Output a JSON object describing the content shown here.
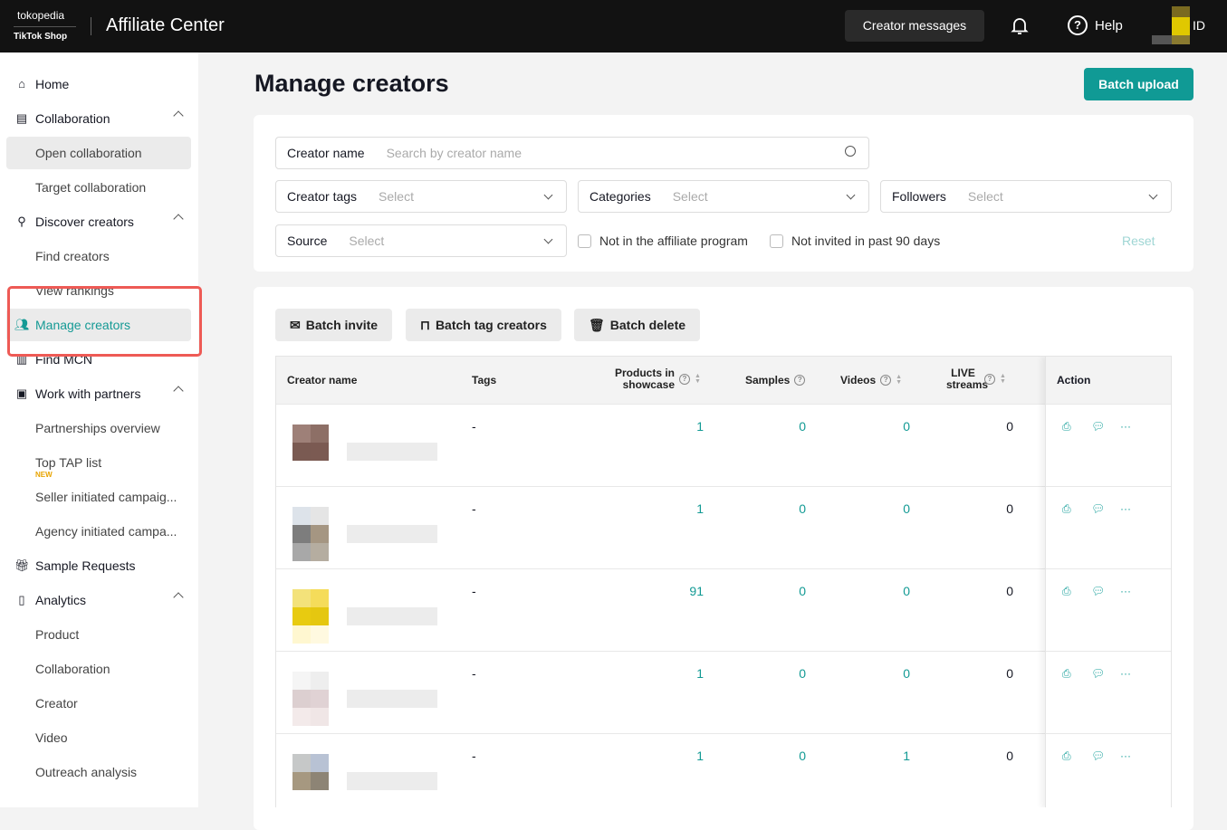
{
  "header": {
    "logo_top": "tokopedia",
    "logo_bottom": "TikTok Shop",
    "app_title": "Affiliate Center",
    "creator_messages": "Creator messages",
    "help": "Help",
    "region": "ID"
  },
  "sidebar": {
    "items": [
      {
        "label": "Home",
        "icon": "home-icon"
      },
      {
        "label": "Collaboration",
        "icon": "document-icon",
        "expanded": true
      },
      {
        "label": "Open collaboration",
        "sub": true
      },
      {
        "label": "Target collaboration",
        "sub": true
      },
      {
        "label": "Discover creators",
        "icon": "person-search-icon",
        "expanded": true
      },
      {
        "label": "Find creators",
        "sub": true
      },
      {
        "label": "View rankings",
        "sub": true
      },
      {
        "label": "Manage creators",
        "icon": "people-icon",
        "active": true
      },
      {
        "label": "Find MCN",
        "icon": "building-icon"
      },
      {
        "label": "Work with partners",
        "icon": "handshake-icon",
        "expanded": true
      },
      {
        "label": "Partnerships overview",
        "sub": true
      },
      {
        "label": "Top TAP list",
        "sub": true,
        "badge": "NEW"
      },
      {
        "label": "Seller initiated campaig...",
        "sub": true
      },
      {
        "label": "Agency initiated campa...",
        "sub": true
      },
      {
        "label": "Sample Requests",
        "icon": "gift-icon"
      },
      {
        "label": "Analytics",
        "icon": "chart-icon",
        "expanded": true
      },
      {
        "label": "Product",
        "sub": true
      },
      {
        "label": "Collaboration",
        "sub": true
      },
      {
        "label": "Creator",
        "sub": true
      },
      {
        "label": "Video",
        "sub": true
      },
      {
        "label": "Outreach analysis",
        "sub": true
      }
    ]
  },
  "page": {
    "title": "Manage creators",
    "batch_upload": "Batch upload"
  },
  "filters": {
    "creator_name_label": "Creator name",
    "creator_name_placeholder": "Search by creator name",
    "creator_name_value": "",
    "creator_tags_label": "Creator tags",
    "categories_label": "Categories",
    "followers_label": "Followers",
    "source_label": "Source",
    "select_placeholder": "Select",
    "not_in_program": "Not in the affiliate program",
    "not_invited": "Not invited in past 90 days",
    "reset": "Reset"
  },
  "toolbar": {
    "batch_invite": "Batch invite",
    "batch_tag": "Batch tag creators",
    "batch_delete": "Batch delete"
  },
  "table": {
    "columns": {
      "name": "Creator name",
      "tags": "Tags",
      "products": "Products in showcase",
      "samples": "Samples",
      "videos": "Videos",
      "live": "LIVE streams",
      "action": "Action"
    },
    "rows": [
      {
        "tags": "-",
        "products": "1",
        "samples": "0",
        "videos": "0",
        "live": "0"
      },
      {
        "tags": "-",
        "products": "1",
        "samples": "0",
        "videos": "0",
        "live": "0"
      },
      {
        "tags": "-",
        "products": "91",
        "samples": "0",
        "videos": "0",
        "live": "0"
      },
      {
        "tags": "-",
        "products": "1",
        "samples": "0",
        "videos": "0",
        "live": "0"
      },
      {
        "tags": "-",
        "products": "1",
        "samples": "0",
        "videos": "1",
        "live": "0"
      }
    ]
  },
  "colors": {
    "accent": "#109a95",
    "topbar": "#121212",
    "highlight": "#ee5a55"
  }
}
